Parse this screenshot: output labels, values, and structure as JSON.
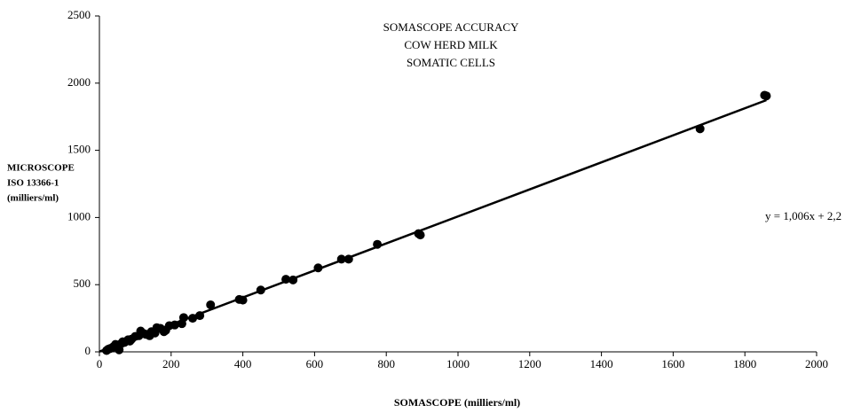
{
  "chart_data": {
    "type": "scatter",
    "title": [
      "SOMASCOPE ACCURACY",
      "COW HERD MILK",
      "SOMATIC CELLS"
    ],
    "x_label": "SOMASCOPE (milliers/ml)",
    "y_label": [
      "MICROSCOPE",
      "ISO 13366-1",
      "(milliers/ml)"
    ],
    "color": "#000000",
    "x": [
      1860,
      1855,
      1675,
      895,
      890,
      775,
      695,
      675,
      610,
      540,
      520,
      450,
      400,
      390,
      310,
      280,
      260,
      235,
      230,
      210,
      195,
      185,
      180,
      170,
      160,
      155,
      145,
      140,
      125,
      115,
      110,
      100,
      90,
      80,
      70,
      60,
      55,
      50,
      45,
      40,
      35,
      30,
      25,
      20,
      55,
      65,
      85,
      130
    ],
    "values": [
      1905,
      1910,
      1660,
      870,
      880,
      800,
      690,
      690,
      625,
      535,
      540,
      460,
      385,
      390,
      350,
      270,
      250,
      255,
      210,
      200,
      195,
      160,
      150,
      175,
      180,
      140,
      150,
      120,
      135,
      155,
      120,
      115,
      95,
      90,
      70,
      60,
      50,
      40,
      55,
      40,
      30,
      25,
      20,
      10,
      15,
      75,
      80,
      130
    ],
    "trendline": {
      "label": "y = 1,006x + 2,2",
      "slope": 1.006,
      "intercept": 2.2,
      "xrange": [
        0,
        1860
      ]
    },
    "xlim": [
      0,
      2000
    ],
    "xticks": [
      0,
      200,
      400,
      600,
      800,
      1000,
      1200,
      1400,
      1600,
      1800,
      2000
    ],
    "ylim": [
      0,
      2500
    ],
    "yticks": [
      0,
      500,
      1000,
      1500,
      2000,
      2500
    ],
    "grid": false
  }
}
